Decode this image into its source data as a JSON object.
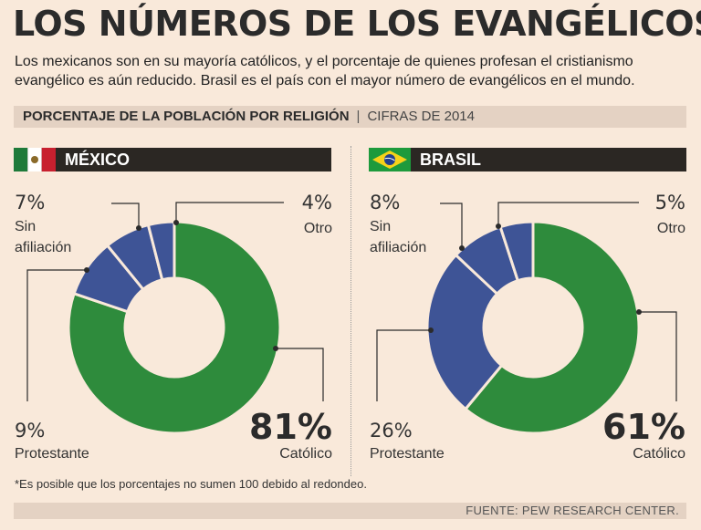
{
  "header": {
    "title": "LOS NÚMEROS DE LOS EVANGÉLICOS",
    "subtitle": "Los mexicanos son en su mayoría católicos, y el porcentaje de quienes profesan el cristianismo evangélico es aún reducido. Brasil es el país con el mayor número de evangélicos en el mundo."
  },
  "section": {
    "label": "PORCENTAJE DE LA POBLACIÓN POR RELIGIÓN",
    "separator": "|",
    "note": "CIFRAS DE 2014"
  },
  "colors": {
    "catolico": "#2e8b3c",
    "otros": "#3e5496",
    "dark": "#2b2723"
  },
  "chart_data": [
    {
      "type": "pie",
      "title": "MÉXICO",
      "units": "%",
      "slices": [
        {
          "name": "Católico",
          "value": 81,
          "label": "81%",
          "color": "#2e8b3c"
        },
        {
          "name": "Protestante",
          "value": 9,
          "label": "9%",
          "color": "#3e5496"
        },
        {
          "name": "Sin afiliación",
          "value": 7,
          "label": "7%",
          "color": "#3e5496"
        },
        {
          "name": "Otro",
          "value": 4,
          "label": "4%",
          "color": "#3e5496"
        }
      ],
      "labels": {
        "sin_line1": "Sin",
        "sin_line2": "afiliación"
      }
    },
    {
      "type": "pie",
      "title": "BRASIL",
      "units": "%",
      "slices": [
        {
          "name": "Católico",
          "value": 61,
          "label": "61%",
          "color": "#2e8b3c"
        },
        {
          "name": "Protestante",
          "value": 26,
          "label": "26%",
          "color": "#3e5496"
        },
        {
          "name": "Sin afiliación",
          "value": 8,
          "label": "8%",
          "color": "#3e5496"
        },
        {
          "name": "Otro",
          "value": 5,
          "label": "5%",
          "color": "#3e5496"
        }
      ],
      "labels": {
        "sin_line1": "Sin",
        "sin_line2": "afiliación"
      }
    }
  ],
  "footer": {
    "footnote": "*Es posible que los porcentajes no sumen 100 debido al redondeo.",
    "source": "FUENTE: PEW RESEARCH CENTER."
  }
}
